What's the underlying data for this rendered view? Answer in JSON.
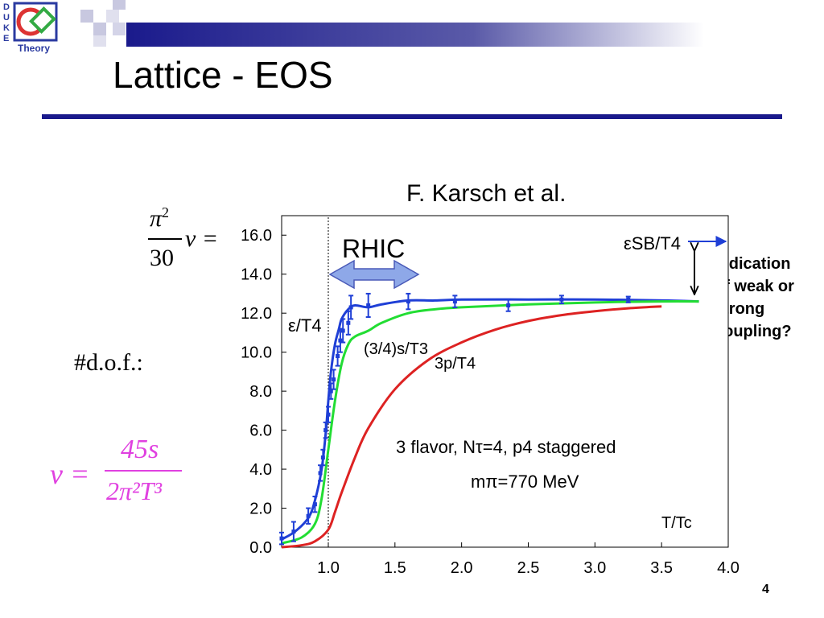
{
  "slide": {
    "title": "Lattice - EOS",
    "credit": "F. Karsch et al.",
    "page_number": "4",
    "logo_letters": [
      "D",
      "U",
      "K",
      "E"
    ],
    "logo_caption": "Theory"
  },
  "formulas": {
    "pi_sq": "π",
    "pi_exp": "2",
    "denom_30": "30",
    "nu_eq": "ν =",
    "dof": "#d.o.f.:",
    "nu_eq_magenta": "ν =",
    "num_45s": "45s",
    "denom_2pi2T3": "2π²T³"
  },
  "side_note": [
    "Indication",
    "of weak or",
    "strong",
    "coupling?"
  ],
  "colors": {
    "title_rule": "#1a1a8c",
    "eps": "#1f3fd6",
    "entropy": "#22dd33",
    "pressure": "#dd2222",
    "rhic_arrow": "#8ea8e8",
    "magenta": "#e040e0"
  },
  "chart_data": {
    "type": "line",
    "xlabel": "T/Tc",
    "x_range": [
      0.65,
      4.0
    ],
    "y_range": [
      0.0,
      17.0
    ],
    "x_ticks": [
      "1.0",
      "1.5",
      "2.0",
      "2.5",
      "3.0",
      "3.5",
      "4.0"
    ],
    "x_tick_values": [
      1.0,
      1.5,
      2.0,
      2.5,
      3.0,
      3.5,
      4.0
    ],
    "y_ticks": [
      "0.0",
      "2.0",
      "4.0",
      "6.0",
      "8.0",
      "10.0",
      "12.0",
      "14.0",
      "16.0"
    ],
    "y_tick_values": [
      0,
      2,
      4,
      6,
      8,
      10,
      12,
      14,
      16
    ],
    "vline_x": 1.0,
    "series": [
      {
        "name": "ε/T4",
        "color": "#1f3fd6",
        "x": [
          0.65,
          0.75,
          0.85,
          0.9,
          0.95,
          0.98,
          1.0,
          1.02,
          1.05,
          1.08,
          1.1,
          1.15,
          1.2,
          1.3,
          1.4,
          1.6,
          1.8,
          2.0,
          2.5,
          3.0,
          3.5,
          3.78
        ],
        "y": [
          0.4,
          0.8,
          1.5,
          2.4,
          4.0,
          5.8,
          7.5,
          9.0,
          10.4,
          11.2,
          11.7,
          12.2,
          12.4,
          12.3,
          12.45,
          12.65,
          12.65,
          12.7,
          12.7,
          12.7,
          12.65,
          12.6
        ],
        "points": [
          {
            "x": 0.65,
            "y": 0.45,
            "err": 0.3
          },
          {
            "x": 0.74,
            "y": 0.8,
            "err": 0.5
          },
          {
            "x": 0.85,
            "y": 1.6,
            "err": 0.4
          },
          {
            "x": 0.9,
            "y": 2.2,
            "err": 0.4
          },
          {
            "x": 0.94,
            "y": 3.8,
            "err": 0.4
          },
          {
            "x": 0.96,
            "y": 4.6,
            "err": 0.4
          },
          {
            "x": 0.98,
            "y": 6.0,
            "err": 0.4
          },
          {
            "x": 1.0,
            "y": 6.8,
            "err": 0.4
          },
          {
            "x": 1.02,
            "y": 8.0,
            "err": 0.4
          },
          {
            "x": 1.04,
            "y": 8.6,
            "err": 0.5
          },
          {
            "x": 1.07,
            "y": 9.8,
            "err": 0.5
          },
          {
            "x": 1.09,
            "y": 10.6,
            "err": 0.6
          },
          {
            "x": 1.11,
            "y": 11.1,
            "err": 0.6
          },
          {
            "x": 1.15,
            "y": 11.5,
            "err": 0.6
          },
          {
            "x": 1.17,
            "y": 12.3,
            "err": 0.6
          },
          {
            "x": 1.3,
            "y": 12.4,
            "err": 0.6
          },
          {
            "x": 1.6,
            "y": 12.6,
            "err": 0.4
          },
          {
            "x": 1.95,
            "y": 12.6,
            "err": 0.3
          },
          {
            "x": 2.35,
            "y": 12.4,
            "err": 0.3
          },
          {
            "x": 2.75,
            "y": 12.7,
            "err": 0.2
          },
          {
            "x": 3.25,
            "y": 12.7,
            "err": 0.15
          }
        ]
      },
      {
        "name": "(3/4)s/T3",
        "color": "#22dd33",
        "x": [
          0.65,
          0.8,
          0.9,
          0.95,
          1.0,
          1.05,
          1.1,
          1.15,
          1.2,
          1.3,
          1.4,
          1.6,
          1.8,
          2.0,
          2.5,
          3.0,
          3.5,
          3.78
        ],
        "y": [
          0.2,
          0.5,
          1.2,
          2.5,
          5.0,
          7.5,
          9.4,
          10.4,
          10.8,
          11.1,
          11.5,
          12.0,
          12.2,
          12.3,
          12.45,
          12.55,
          12.6,
          12.6
        ],
        "points": []
      },
      {
        "name": "3p/T4",
        "color": "#dd2222",
        "x": [
          0.65,
          0.8,
          0.9,
          1.0,
          1.05,
          1.1,
          1.2,
          1.3,
          1.5,
          1.75,
          2.0,
          2.25,
          2.5,
          2.75,
          3.0,
          3.25,
          3.5
        ],
        "y": [
          0.0,
          0.1,
          0.3,
          0.9,
          1.8,
          2.8,
          4.6,
          6.1,
          8.1,
          9.6,
          10.5,
          11.15,
          11.6,
          11.9,
          12.1,
          12.25,
          12.35
        ],
        "points": []
      }
    ],
    "annotations": {
      "rhic": "RHIC",
      "sb_label": "εSB/T4",
      "eps_label": "ε/T4",
      "s_label": "(3/4)s/T3",
      "p_label": "3p/T4",
      "info_line1": "3 flavor, Nτ=4, p4 staggered",
      "info_line2": "mπ=770 MeV"
    }
  }
}
